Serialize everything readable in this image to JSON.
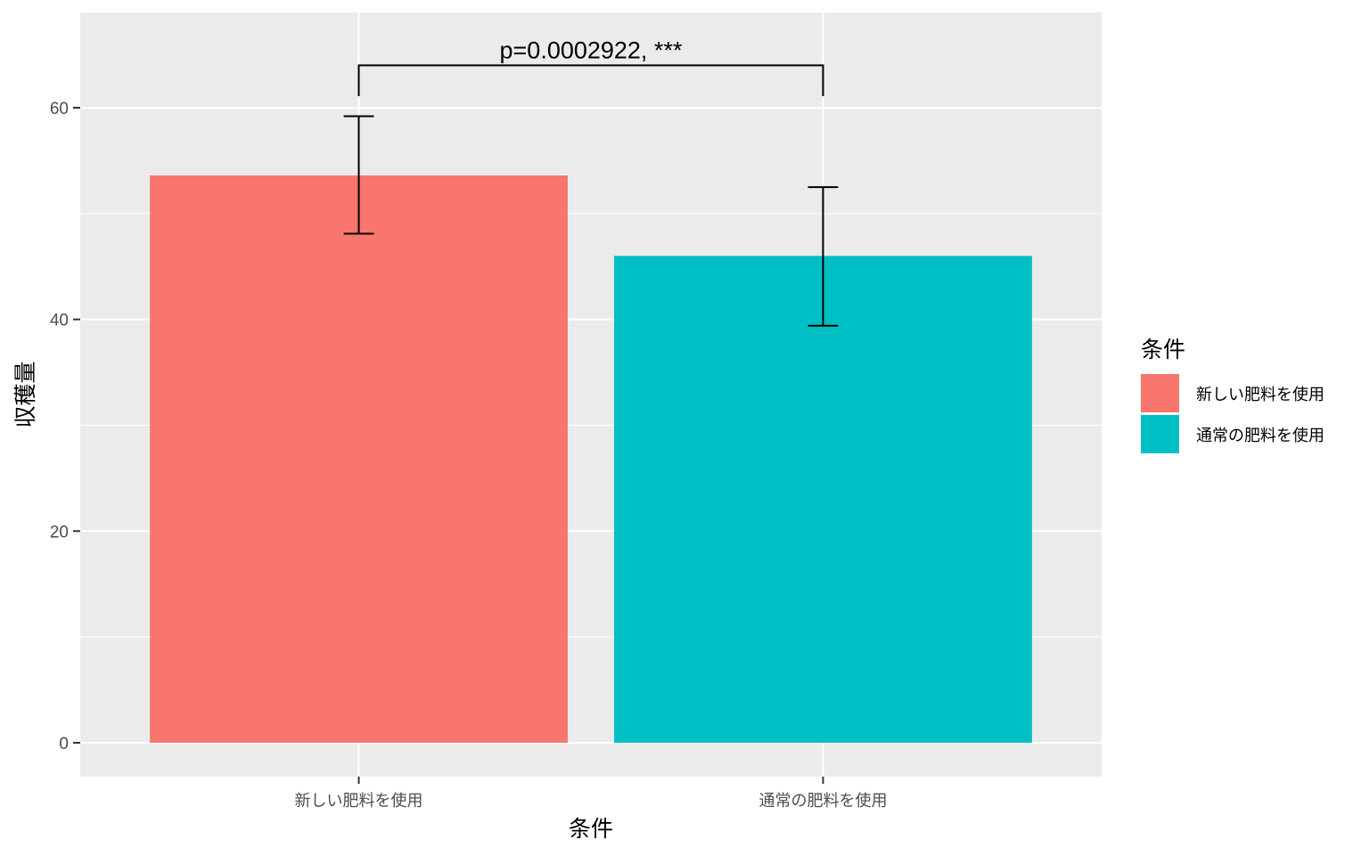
{
  "chart_data": {
    "type": "bar",
    "categories": [
      "新しい肥料を使用",
      "通常の肥料を使用"
    ],
    "values": [
      53.6,
      46.0
    ],
    "error_bars": [
      {
        "lower": 48.1,
        "upper": 59.2
      },
      {
        "lower": 39.4,
        "upper": 52.5
      }
    ],
    "colors": [
      "#F8766D",
      "#00BFC4"
    ],
    "panel_background": "#EBEBEB",
    "grid": true,
    "xlabel": "条件",
    "ylabel": "収穫量",
    "ylim": [
      -3.2,
      69
    ],
    "yticks": [
      0,
      20,
      40,
      60
    ],
    "legend": {
      "title": "条件",
      "position": "right",
      "entries": [
        "新しい肥料を使用",
        "通常の肥料を使用"
      ]
    },
    "significance": {
      "label": "p=0.0002922, ***",
      "y_bracket": 64,
      "y_tip": 61.1,
      "between": [
        0,
        1
      ]
    }
  }
}
